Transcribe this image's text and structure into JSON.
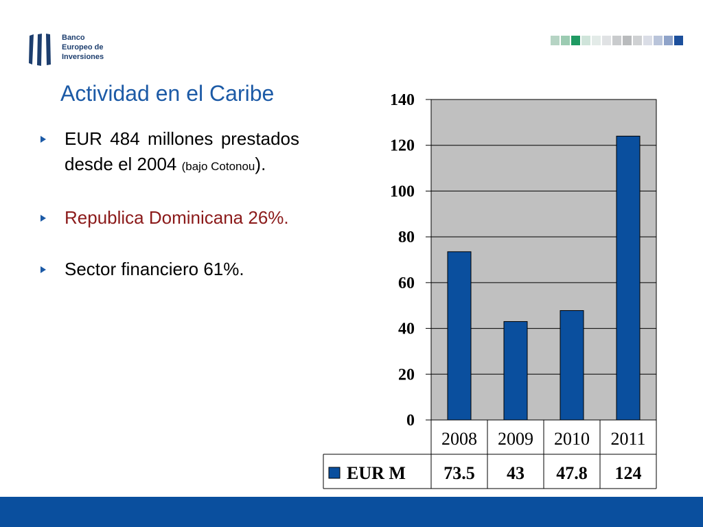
{
  "logo": {
    "line1": "Banco",
    "line2": "Europeo de",
    "line3": "Inversiones"
  },
  "strip_colors": [
    "#b6d4c4",
    "#9ccbb2",
    "#1f9a63",
    "#cfe4da",
    "#e3ebe8",
    "#e0e2e4",
    "#c9cbcd",
    "#b9bbbd",
    "#cfd1d3",
    "#dadde6",
    "#b9c4da",
    "#8fa3c9",
    "#1c4f9c"
  ],
  "title": "Actividad en el Caribe",
  "bullets": [
    {
      "main": "EUR 484 millones prestados desde el 2004 ",
      "small": "(bajo Cotonou",
      "tail": ")."
    },
    {
      "text": "Republica Dominicana 26%."
    },
    {
      "text": "Sector financiero 61%."
    }
  ],
  "colors": {
    "title": "#1c5aa6",
    "bar": "#0a4f9e",
    "plot_bg": "#c0c0c0",
    "footer": "#0a4f9e",
    "highlight_text": "#8b1a1a"
  },
  "chart_data": {
    "type": "bar",
    "categories": [
      "2008",
      "2009",
      "2010",
      "2011"
    ],
    "series": [
      {
        "name": "EUR M",
        "values": [
          73.5,
          43,
          47.8,
          124
        ]
      }
    ],
    "ylim": [
      0,
      140
    ],
    "yticks": [
      "0",
      "20",
      "40",
      "60",
      "80",
      "100",
      "120",
      "140"
    ],
    "table_values": [
      "73.5",
      "43",
      "47.8",
      "124"
    ],
    "grid": true,
    "legend": "data-table"
  }
}
